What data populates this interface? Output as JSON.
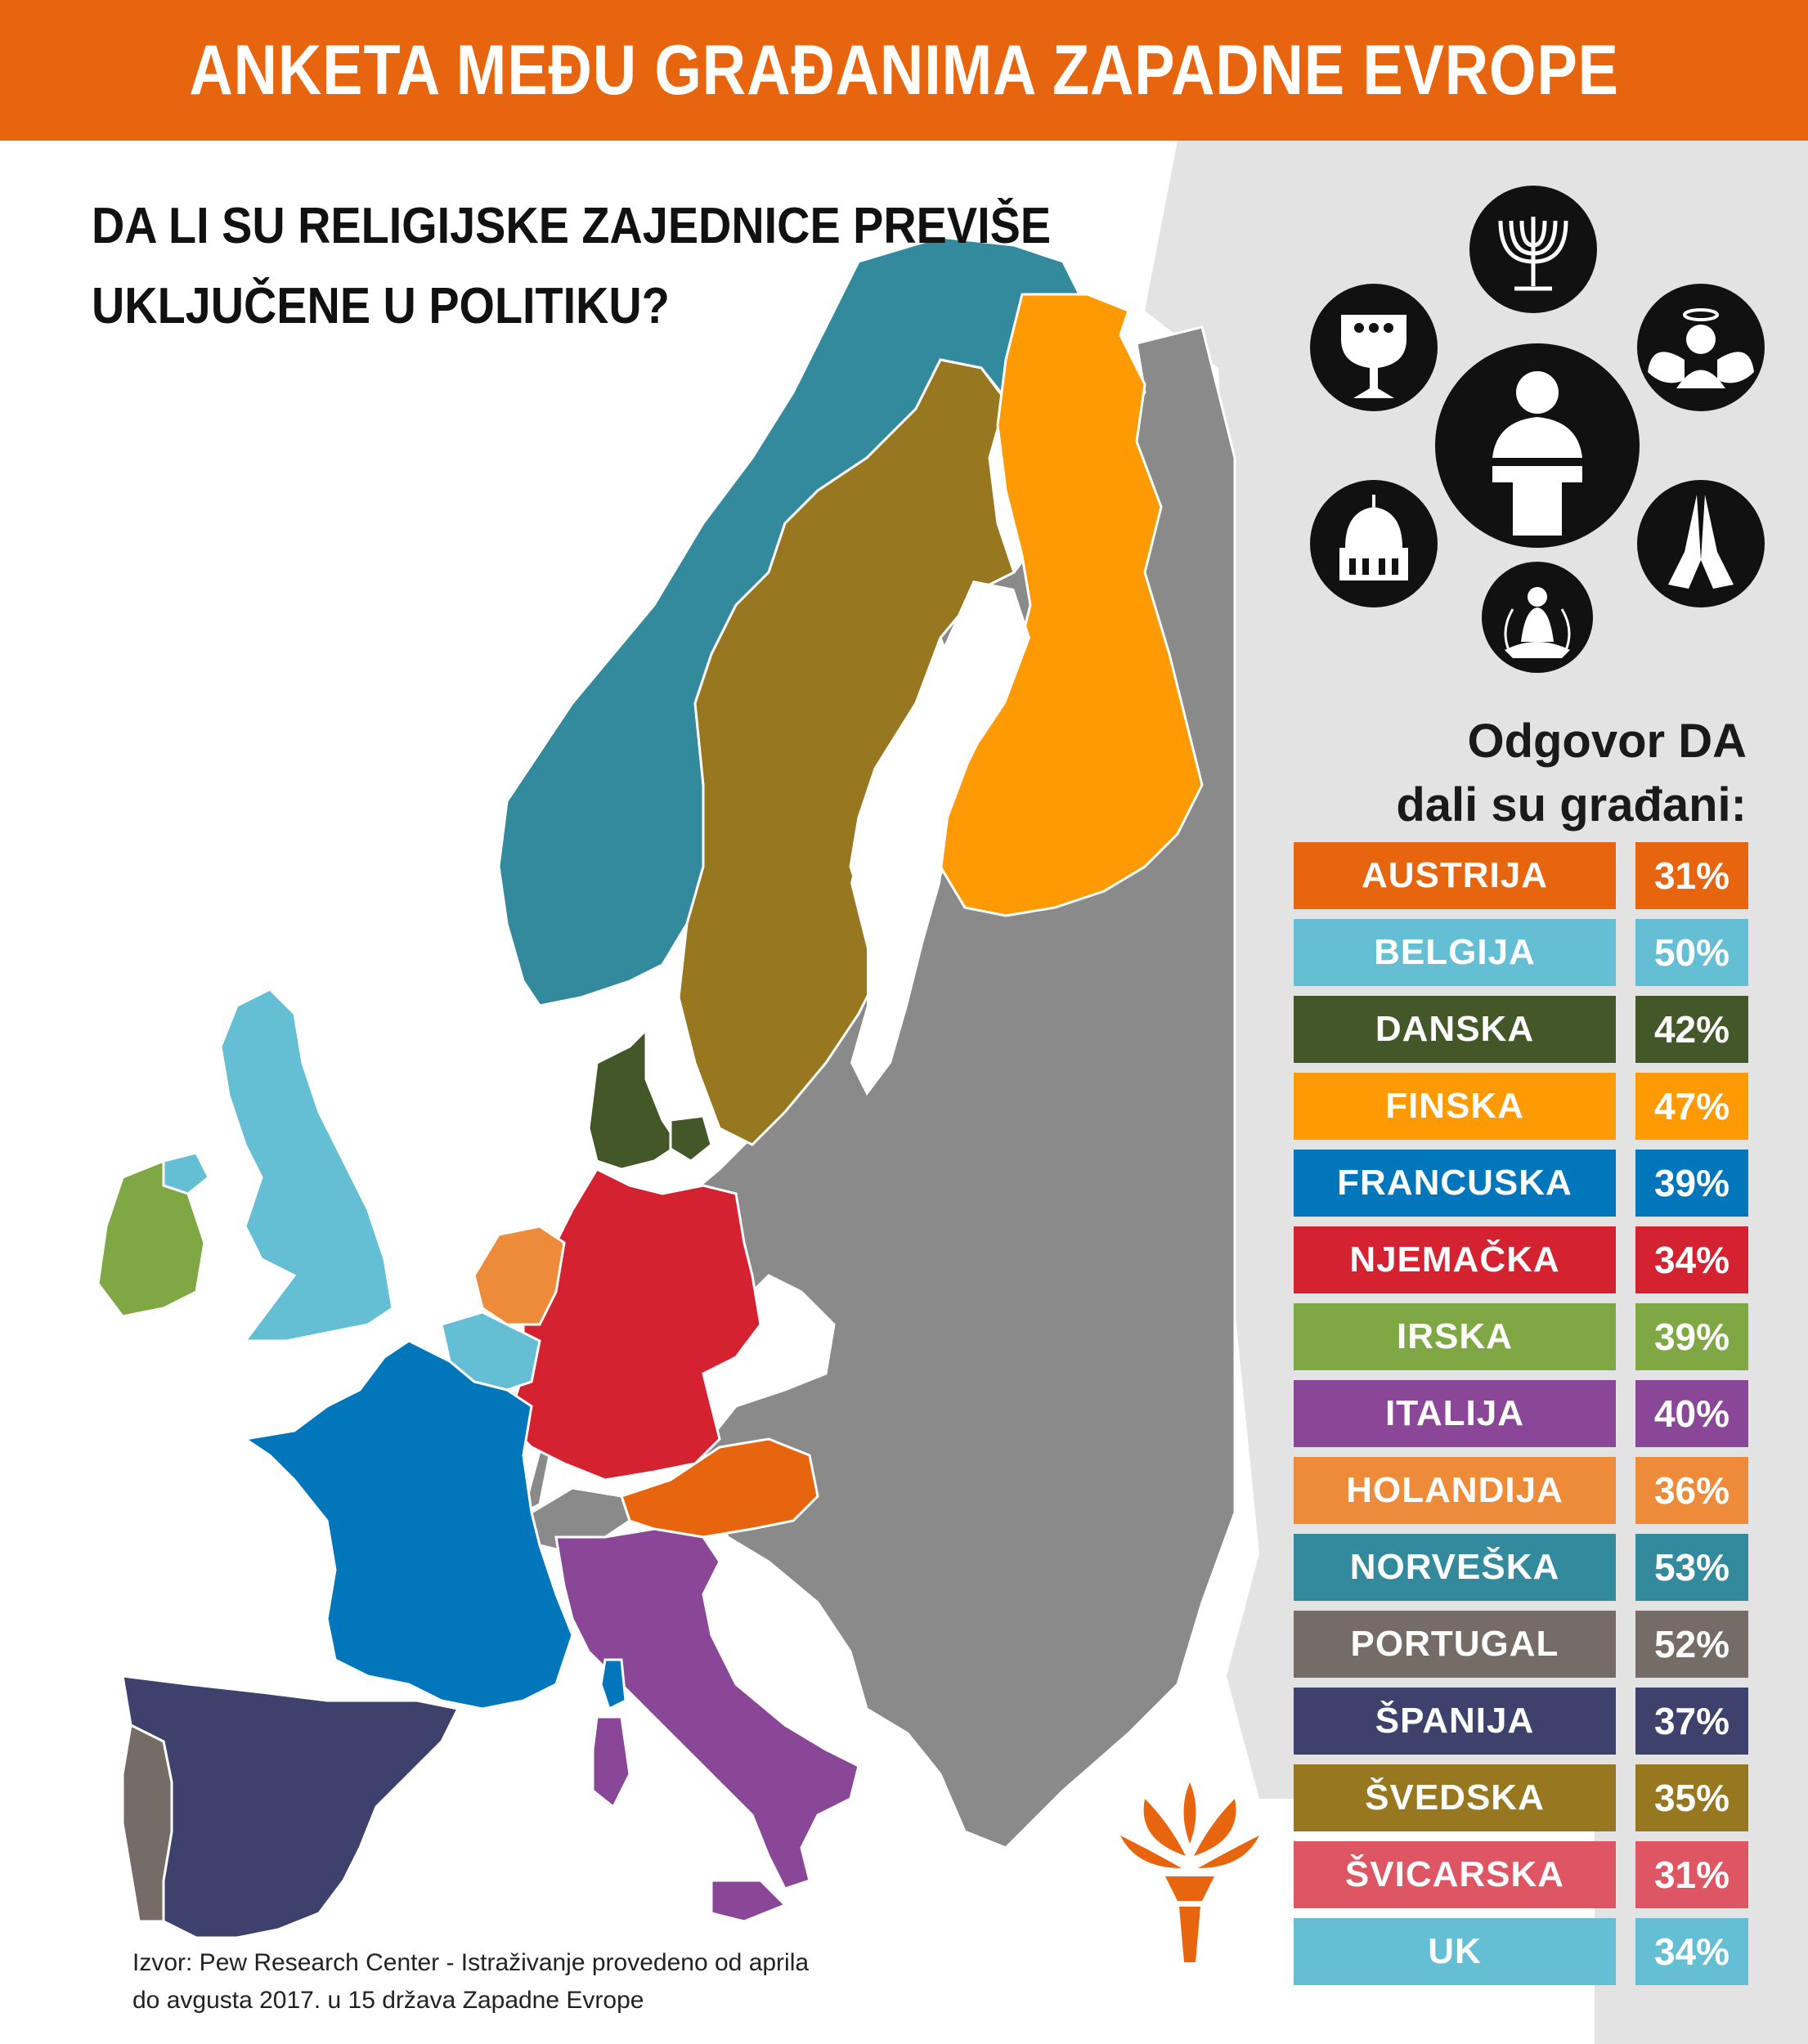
{
  "header": {
    "title": "ANKETA MEĐU GRAĐANIMA ZAPADNE EVROPE",
    "color": "#e8650f"
  },
  "question": {
    "line1": "DA LI SU RELIGIJSKE ZAJEDNICE PREVIŠE",
    "line2": "UKLJUČENE U POLITIKU?"
  },
  "answer_heading": {
    "line1": "Odgovor DA",
    "line2": "dali su građani:"
  },
  "religion_icons": [
    "menorah-icon",
    "chalice-icon",
    "angel-icon",
    "speaker-at-podium-icon",
    "mosque-icon",
    "praying-hands-icon",
    "meditating-figure-icon"
  ],
  "legend": [
    {
      "country": "AUSTRIJA",
      "value": "31%",
      "color": "#e8650f"
    },
    {
      "country": "BELGIJA",
      "value": "50%",
      "color": "#64bed4"
    },
    {
      "country": "DANSKA",
      "value": "42%",
      "color": "#435728"
    },
    {
      "country": "FINSKA",
      "value": "47%",
      "color": "#fd9a04"
    },
    {
      "country": "FRANCUSKA",
      "value": "39%",
      "color": "#0176bb"
    },
    {
      "country": "NJEMAČKA",
      "value": "34%",
      "color": "#d52231"
    },
    {
      "country": "IRSKA",
      "value": "39%",
      "color": "#7fa844"
    },
    {
      "country": "ITALIJA",
      "value": "40%",
      "color": "#8a4797"
    },
    {
      "country": "HOLANDIJA",
      "value": "36%",
      "color": "#ee8b3a"
    },
    {
      "country": "NORVEŠKA",
      "value": "53%",
      "color": "#338a9d"
    },
    {
      "country": "PORTUGAL",
      "value": "52%",
      "color": "#756c67"
    },
    {
      "country": "ŠPANIJA",
      "value": "37%",
      "color": "#3e416b"
    },
    {
      "country": "ŠVEDSKA",
      "value": "35%",
      "color": "#97771f"
    },
    {
      "country": "ŠVICARSKA",
      "value": "31%",
      "color": "#de5563"
    },
    {
      "country": "UK",
      "value": "34%",
      "color": "#64bed4"
    }
  ],
  "map_colors": {
    "other_countries": "#8a8a8a",
    "background_land": "#e3e3e3",
    "sea": "#ffffff"
  },
  "source": {
    "line1": "Izvor: Pew Research Center - Istraživanje provedeno od aprila",
    "line2": "do avgusta 2017. u 15 država Zapadne Evrope"
  },
  "logo": {
    "name": "torch-logo-icon",
    "color": "#e8650f"
  }
}
